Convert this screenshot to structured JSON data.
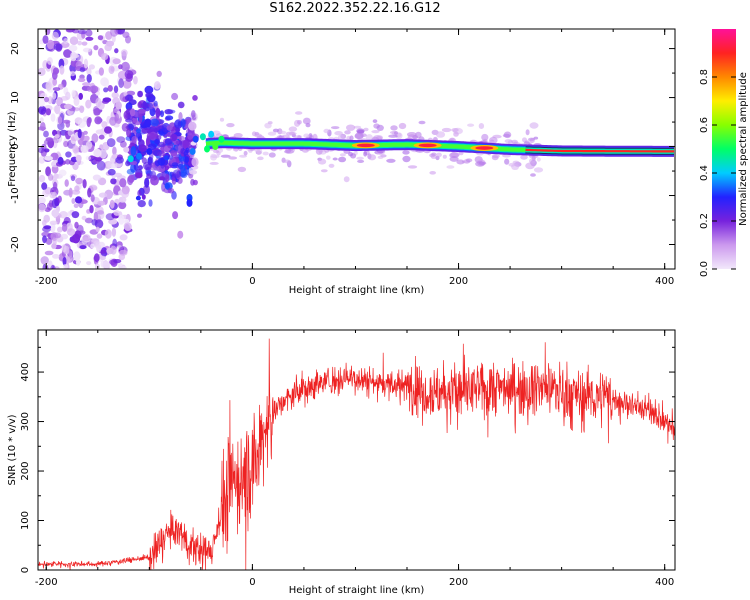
{
  "title": "S162.2022.352.22.16.G12",
  "chart_data": [
    {
      "type": "heatmap",
      "xlabel": "Height of straight line (km)",
      "ylabel": "Frequency (Hz)",
      "xlim": [
        -208,
        410
      ],
      "ylim": [
        -25,
        24
      ],
      "xticks": [
        "-200",
        "0",
        "200",
        "400"
      ],
      "xtick_values": [
        -200,
        0,
        200,
        400
      ],
      "yticks": [
        "-20",
        "-10",
        "0",
        "10",
        "20"
      ],
      "ytick_values": [
        -20,
        -10,
        0,
        10,
        20
      ],
      "colorbar": {
        "label": "Normalized spectral amplitude",
        "ticks": [
          "0.0",
          "0.2",
          "0.4",
          "0.6",
          "0.8"
        ],
        "tick_values": [
          0.0,
          0.2,
          0.4,
          0.6,
          0.8
        ],
        "range": [
          0,
          1
        ],
        "colors": [
          "#f2e8fb",
          "#cc99ee",
          "#7722dd",
          "#2222ff",
          "#00ccff",
          "#00ff66",
          "#88ff00",
          "#ffee00",
          "#ff8800",
          "#ff2222",
          "#ff1199"
        ]
      },
      "ridge": {
        "x": [
          -50,
          -30,
          0,
          50,
          100,
          150,
          200,
          250,
          300,
          410
        ],
        "y": [
          0.5,
          0.8,
          0.6,
          0.6,
          0.2,
          0.4,
          0.0,
          -0.6,
          -0.9,
          -1.0
        ]
      },
      "hot_spots_x": [
        110,
        170,
        225
      ]
    },
    {
      "type": "line",
      "xlabel": "Height of straight line (km)",
      "ylabel": "SNR (10 * v/v)",
      "xlim": [
        -208,
        410
      ],
      "ylim": [
        0,
        485
      ],
      "xticks": [
        "-200",
        "0",
        "200",
        "400"
      ],
      "xtick_values": [
        -200,
        0,
        200,
        400
      ],
      "yticks": [
        "0",
        "100",
        "200",
        "300",
        "400"
      ],
      "ytick_values": [
        0,
        100,
        200,
        300,
        400
      ],
      "series": [
        {
          "color": "#ee2222",
          "x": [
            -208,
            -150,
            -120,
            -100,
            -90,
            -80,
            -70,
            -60,
            -50,
            -40,
            -30,
            -20,
            -10,
            0,
            10,
            20,
            40,
            60,
            80,
            100,
            120,
            150,
            180,
            200,
            240,
            280,
            320,
            360,
            390,
            410
          ],
          "y": [
            12,
            12,
            20,
            25,
            45,
            80,
            75,
            50,
            35,
            40,
            120,
            170,
            190,
            200,
            270,
            320,
            355,
            375,
            385,
            390,
            380,
            370,
            360,
            360,
            370,
            370,
            355,
            340,
            320,
            280
          ]
        }
      ]
    }
  ]
}
